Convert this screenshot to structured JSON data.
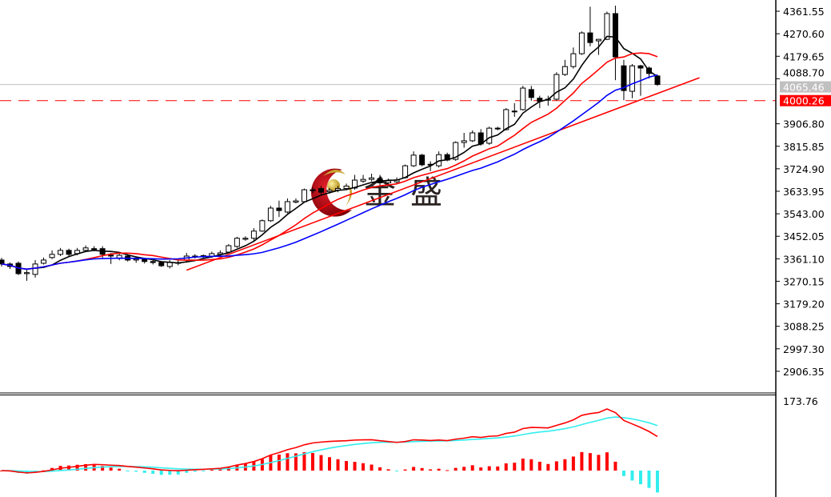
{
  "chart_data": {
    "type": "candlestick",
    "title": "",
    "ylim": [
      2822,
      4407
    ],
    "y_ticks": [
      "4361.55",
      "4270.60",
      "4179.65",
      "4088.70",
      "3906.80",
      "3815.85",
      "3724.90",
      "3633.95",
      "3543.00",
      "3452.05",
      "3361.10",
      "3270.15",
      "3179.20",
      "3088.25",
      "2997.30",
      "2906.35"
    ],
    "grid": false,
    "current_price": {
      "value": 4065.46,
      "label": "4065.46",
      "color": "#c0c0c0"
    },
    "level_line": {
      "value": 4000.26,
      "label": "4000.26",
      "color": "#ff0000",
      "style": "dashed"
    },
    "candles": [
      [
        3356,
        3365,
        3330,
        3340
      ],
      [
        3340,
        3346,
        3320,
        3330
      ],
      [
        3343,
        3350,
        3295,
        3301
      ],
      [
        3301,
        3320,
        3272,
        3305
      ],
      [
        3298,
        3356,
        3285,
        3340
      ],
      [
        3343,
        3366,
        3338,
        3356
      ],
      [
        3366,
        3395,
        3360,
        3379
      ],
      [
        3379,
        3405,
        3372,
        3395
      ],
      [
        3395,
        3402,
        3372,
        3379
      ],
      [
        3382,
        3405,
        3375,
        3395
      ],
      [
        3395,
        3415,
        3390,
        3405
      ],
      [
        3400,
        3412,
        3392,
        3402
      ],
      [
        3402,
        3412,
        3360,
        3379
      ],
      [
        3376,
        3385,
        3340,
        3372
      ],
      [
        3362,
        3382,
        3355,
        3375
      ],
      [
        3372,
        3380,
        3350,
        3356
      ],
      [
        3356,
        3370,
        3345,
        3360
      ],
      [
        3360,
        3365,
        3342,
        3350
      ],
      [
        3350,
        3360,
        3338,
        3346
      ],
      [
        3346,
        3352,
        3328,
        3333
      ],
      [
        3330,
        3356,
        3322,
        3346
      ],
      [
        3343,
        3355,
        3335,
        3346
      ],
      [
        3356,
        3385,
        3345,
        3372
      ],
      [
        3369,
        3380,
        3362,
        3372
      ],
      [
        3372,
        3378,
        3365,
        3374
      ],
      [
        3372,
        3390,
        3365,
        3382
      ],
      [
        3379,
        3395,
        3372,
        3385
      ],
      [
        3388,
        3420,
        3385,
        3414
      ],
      [
        3411,
        3450,
        3405,
        3444
      ],
      [
        3440,
        3452,
        3434,
        3444
      ],
      [
        3444,
        3485,
        3430,
        3473
      ],
      [
        3473,
        3520,
        3470,
        3515
      ],
      [
        3515,
        3575,
        3510,
        3566
      ],
      [
        3566,
        3596,
        3530,
        3556
      ],
      [
        3550,
        3605,
        3545,
        3592
      ],
      [
        3590,
        3605,
        3585,
        3595
      ],
      [
        3592,
        3645,
        3588,
        3640
      ],
      [
        3640,
        3650,
        3625,
        3636
      ],
      [
        3645,
        3655,
        3620,
        3630
      ],
      [
        3632,
        3648,
        3625,
        3638
      ],
      [
        3638,
        3655,
        3630,
        3645
      ],
      [
        3645,
        3665,
        3640,
        3655
      ],
      [
        3647,
        3700,
        3640,
        3679
      ],
      [
        3675,
        3700,
        3668,
        3682
      ],
      [
        3682,
        3705,
        3675,
        3688
      ],
      [
        3685,
        3700,
        3655,
        3668
      ],
      [
        3668,
        3685,
        3662,
        3676
      ],
      [
        3672,
        3690,
        3666,
        3680
      ],
      [
        3689,
        3742,
        3685,
        3737
      ],
      [
        3737,
        3795,
        3732,
        3780
      ],
      [
        3780,
        3785,
        3735,
        3741
      ],
      [
        3740,
        3755,
        3715,
        3743
      ],
      [
        3737,
        3795,
        3730,
        3782
      ],
      [
        3782,
        3790,
        3755,
        3760
      ],
      [
        3763,
        3836,
        3757,
        3831
      ],
      [
        3831,
        3870,
        3810,
        3838
      ],
      [
        3838,
        3880,
        3833,
        3870
      ],
      [
        3870,
        3885,
        3818,
        3825
      ],
      [
        3828,
        3895,
        3822,
        3889
      ],
      [
        3889,
        3895,
        3880,
        3886
      ],
      [
        3883,
        3970,
        3880,
        3964
      ],
      [
        3955,
        3990,
        3935,
        3958
      ],
      [
        3964,
        4060,
        3960,
        4051
      ],
      [
        4045,
        4060,
        4000,
        4013
      ],
      [
        4010,
        4020,
        3970,
        3997
      ],
      [
        4002,
        4020,
        3980,
        4006
      ],
      [
        4006,
        4115,
        4000,
        4106
      ],
      [
        4106,
        4165,
        4100,
        4138
      ],
      [
        4138,
        4215,
        4130,
        4190
      ],
      [
        4190,
        4280,
        4185,
        4274
      ],
      [
        4274,
        4380,
        4220,
        4235
      ],
      [
        4242,
        4250,
        4185,
        4248
      ],
      [
        4248,
        4360,
        4245,
        4352
      ],
      [
        4352,
        4384,
        4083,
        4177
      ],
      [
        4141,
        4165,
        4002,
        4041
      ],
      [
        4038,
        4148,
        4010,
        4141
      ],
      [
        4141,
        4145,
        4020,
        4132
      ],
      [
        4132,
        4138,
        4090,
        4110
      ],
      [
        4100,
        4105,
        4060,
        4065.46
      ]
    ],
    "candle_format": [
      "open",
      "high",
      "low",
      "close"
    ],
    "moving_averages": [
      {
        "period": 5,
        "color": "#000000"
      },
      {
        "period": 10,
        "color": "#ff0000"
      },
      {
        "period": 20,
        "color": "#0000ff"
      }
    ],
    "trendline": {
      "from": [
        22,
        3315
      ],
      "to": [
        83,
        4093
      ],
      "color": "#ff0000"
    },
    "macd": {
      "fast": 12,
      "slow": 26,
      "signal": 9,
      "axis_max_label": "173.76",
      "axis_max": 173.76,
      "macd_color": "#ff0000",
      "signal_color": "#33eeee",
      "hist_pos_color": "#ff0000",
      "hist_neg_color": "#33eeee"
    }
  },
  "watermark": {
    "logo_text": "金盛"
  },
  "colors": {
    "candle_outline": "#000000",
    "bull_fill": "#ffffff",
    "bear_fill": "#000000",
    "axis": "#000000"
  }
}
